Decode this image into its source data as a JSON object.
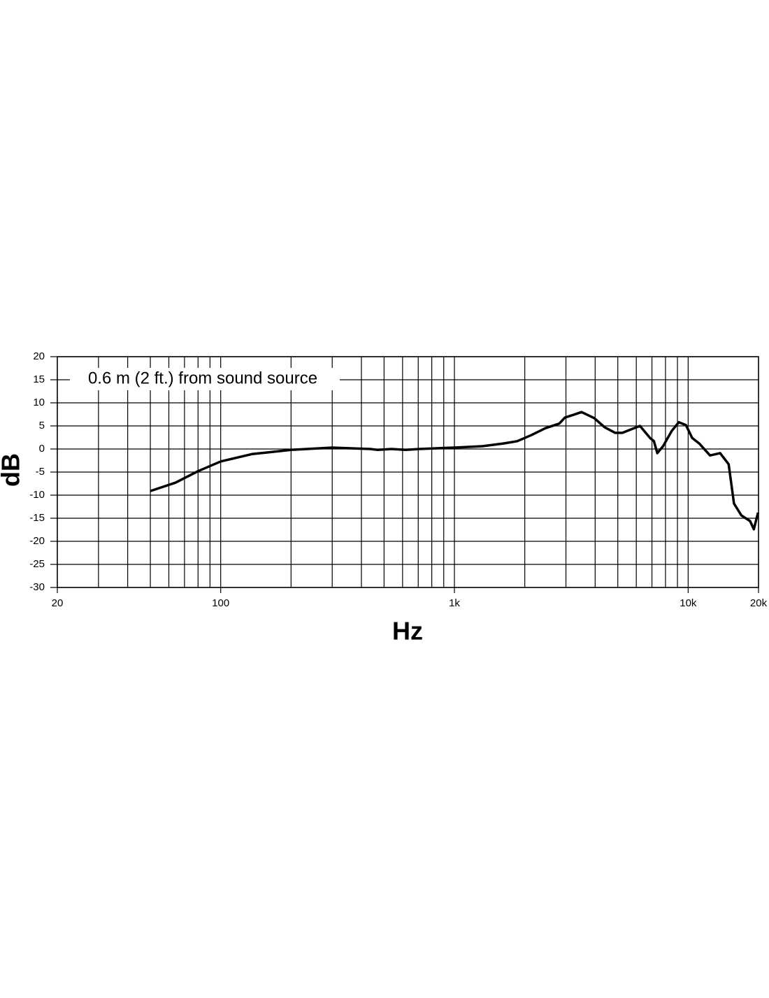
{
  "chart_data": {
    "type": "line",
    "annotation": "0.6 m (2 ft.) from sound source",
    "xlabel": "Hz",
    "ylabel": "dB",
    "xscale": "log",
    "xlim": [
      20,
      20000
    ],
    "ylim": [
      -30,
      20
    ],
    "xticks": [
      20,
      100,
      {
        "value": 1000,
        "label": "1k"
      },
      {
        "value": 10000,
        "label": "10k"
      },
      {
        "value": 20000,
        "label": "20k"
      }
    ],
    "xminor": [
      30,
      40,
      50,
      60,
      70,
      80,
      90,
      200,
      300,
      400,
      500,
      600,
      700,
      800,
      900,
      2000,
      3000,
      4000,
      5000,
      6000,
      7000,
      8000,
      9000
    ],
    "yticks": [
      -30,
      -25,
      -20,
      -15,
      -10,
      -5,
      0,
      5,
      10,
      15,
      20
    ],
    "grid": true,
    "series": [
      {
        "color": "#000000",
        "x": [
          50,
          64,
          80,
          100,
          136,
          200,
          300,
          437,
          470,
          538,
          618,
          709,
          871,
          1000,
          1318,
          1620,
          1857,
          2132,
          2447,
          2810,
          2970,
          3226,
          3500,
          3962,
          4394,
          4874,
          5230,
          6000,
          6220,
          6890,
          7140,
          7380,
          7810,
          8500,
          9120,
          9780,
          10400,
          11150,
          12400,
          13700,
          14900,
          15700,
          16900,
          18400,
          19100,
          19900
        ],
        "values": [
          -9.1,
          -7.3,
          -4.8,
          -2.7,
          -1.1,
          -0.2,
          0.3,
          0,
          -0.2,
          0,
          -0.2,
          0,
          0.2,
          0.3,
          0.6,
          1.2,
          1.7,
          3.0,
          4.5,
          5.5,
          6.8,
          7.4,
          8.0,
          6.7,
          4.7,
          3.5,
          3.5,
          4.7,
          5.0,
          2.3,
          1.7,
          -0.9,
          0.6,
          3.9,
          5.8,
          5.2,
          2.4,
          1.2,
          -1.4,
          -0.9,
          -3.3,
          -11.8,
          -14.4,
          -15.6,
          -17.4,
          -13.8
        ]
      }
    ]
  }
}
